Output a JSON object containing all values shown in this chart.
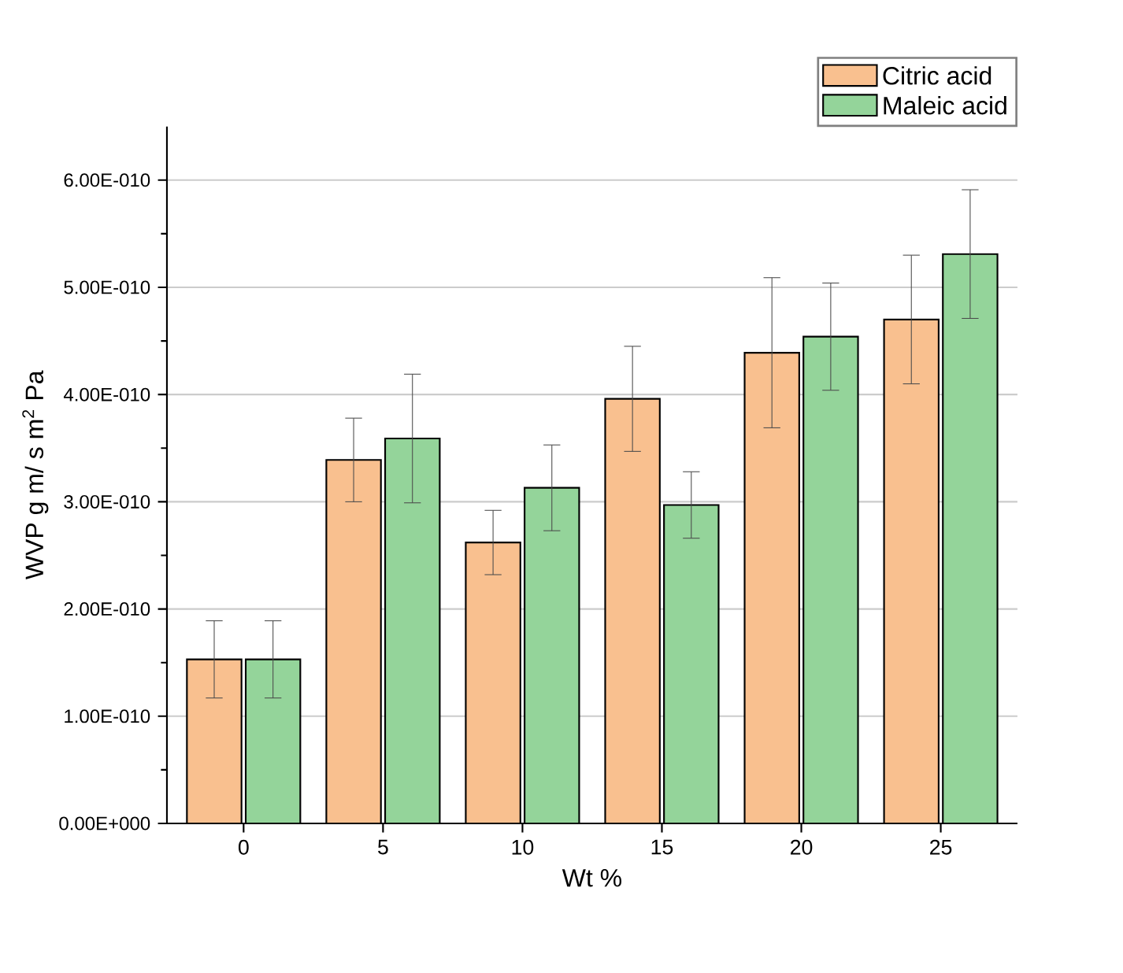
{
  "chart_data": {
    "type": "bar",
    "xlabel": "Wt %",
    "ylabel": "WVP g m/ s m$^{2}$ Pa",
    "categories": [
      "0",
      "5",
      "10",
      "15",
      "20",
      "25"
    ],
    "series": [
      {
        "name": "Citric acid",
        "color": "#f9c08f",
        "values": [
          1.53e-10,
          3.39e-10,
          2.62e-10,
          3.96e-10,
          4.39e-10,
          4.7e-10
        ],
        "errors": [
          3.6e-11,
          3.9e-11,
          3e-11,
          4.9e-11,
          7e-11,
          6e-11
        ]
      },
      {
        "name": "Maleic acid",
        "color": "#94d49a",
        "values": [
          1.53e-10,
          3.59e-10,
          3.13e-10,
          2.97e-10,
          4.54e-10,
          5.31e-10
        ],
        "errors": [
          3.6e-11,
          6e-11,
          4e-11,
          3.1e-11,
          5e-11,
          6e-11
        ]
      }
    ],
    "ylim": [
      0,
      6.5e-10
    ],
    "yticks": [
      {
        "value": 0,
        "label": "0.00E+000"
      },
      {
        "value": 1e-10,
        "label": "1.00E-010"
      },
      {
        "value": 2e-10,
        "label": "2.00E-010"
      },
      {
        "value": 3e-10,
        "label": "3.00E-010"
      },
      {
        "value": 4e-10,
        "label": "4.00E-010"
      },
      {
        "value": 5e-10,
        "label": "5.00E-010"
      },
      {
        "value": 6e-10,
        "label": "6.00E-010"
      }
    ],
    "grid": "y",
    "legend": "top right"
  }
}
